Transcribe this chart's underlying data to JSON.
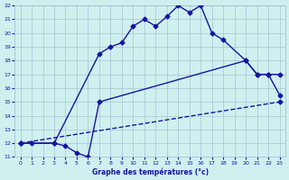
{
  "xlabel": "Graphe des températures (°c)",
  "xlim": [
    -0.5,
    23.5
  ],
  "ylim": [
    11,
    22
  ],
  "yticks": [
    11,
    12,
    13,
    14,
    15,
    16,
    17,
    18,
    19,
    20,
    21,
    22
  ],
  "xticks": [
    0,
    1,
    2,
    3,
    4,
    5,
    6,
    7,
    8,
    9,
    10,
    11,
    12,
    13,
    14,
    15,
    16,
    17,
    18,
    19,
    20,
    21,
    22,
    23
  ],
  "line1_x": [
    0,
    1,
    3,
    7,
    8,
    9,
    10,
    11,
    12,
    13,
    14,
    15,
    16,
    17,
    18,
    20,
    21,
    22,
    23
  ],
  "line1_y": [
    12,
    12,
    12,
    18.5,
    19,
    19.3,
    20.5,
    21,
    20.5,
    21.2,
    22,
    21.5,
    22,
    20.0,
    19.5,
    18,
    17,
    17,
    15.5
  ],
  "line2_x": [
    0,
    3,
    4,
    5,
    6,
    7,
    20,
    21,
    22,
    23
  ],
  "line2_y": [
    12,
    12,
    11.8,
    11.3,
    11,
    15,
    18,
    17,
    17,
    17
  ],
  "line3_x": [
    0,
    23
  ],
  "line3_y": [
    12,
    15
  ],
  "line_color": "#1515a0",
  "bg_color": "#cff0ef",
  "grid_color": "#a0b8cc",
  "marker": "D",
  "marker_size": 2.5,
  "linewidth": 1.0
}
